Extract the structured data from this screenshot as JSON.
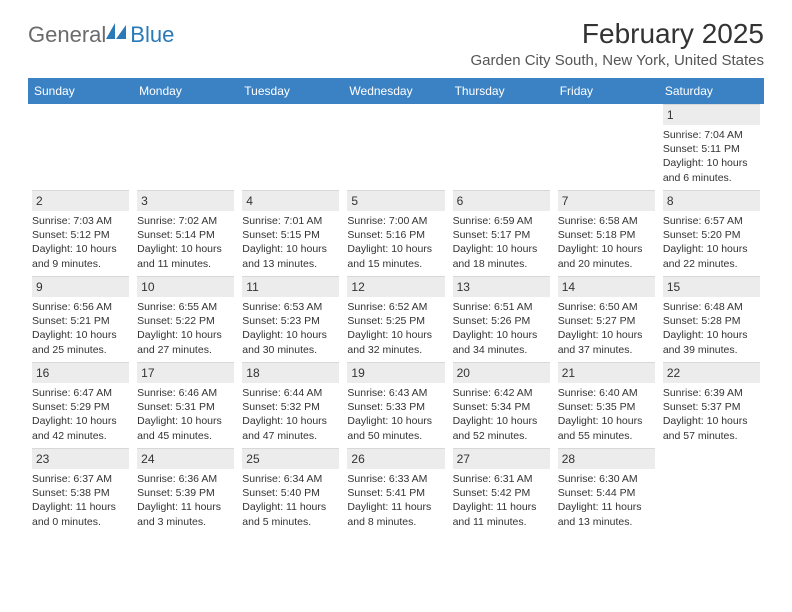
{
  "brand": {
    "name_part1": "General",
    "name_part2": "Blue",
    "logo_color": "#2a7ab8",
    "text_color": "#6b6b6b"
  },
  "title": "February 2025",
  "location": "Garden City South, New York, United States",
  "header_bg": "#3b82c4",
  "header_fg": "#ffffff",
  "daynum_bg": "#ececec",
  "text_color": "#333333",
  "day_names": [
    "Sunday",
    "Monday",
    "Tuesday",
    "Wednesday",
    "Thursday",
    "Friday",
    "Saturday"
  ],
  "weeks": [
    [
      {
        "n": "",
        "sunrise": "",
        "sunset": "",
        "daylight": ""
      },
      {
        "n": "",
        "sunrise": "",
        "sunset": "",
        "daylight": ""
      },
      {
        "n": "",
        "sunrise": "",
        "sunset": "",
        "daylight": ""
      },
      {
        "n": "",
        "sunrise": "",
        "sunset": "",
        "daylight": ""
      },
      {
        "n": "",
        "sunrise": "",
        "sunset": "",
        "daylight": ""
      },
      {
        "n": "",
        "sunrise": "",
        "sunset": "",
        "daylight": ""
      },
      {
        "n": "1",
        "sunrise": "Sunrise: 7:04 AM",
        "sunset": "Sunset: 5:11 PM",
        "daylight": "Daylight: 10 hours and 6 minutes."
      }
    ],
    [
      {
        "n": "2",
        "sunrise": "Sunrise: 7:03 AM",
        "sunset": "Sunset: 5:12 PM",
        "daylight": "Daylight: 10 hours and 9 minutes."
      },
      {
        "n": "3",
        "sunrise": "Sunrise: 7:02 AM",
        "sunset": "Sunset: 5:14 PM",
        "daylight": "Daylight: 10 hours and 11 minutes."
      },
      {
        "n": "4",
        "sunrise": "Sunrise: 7:01 AM",
        "sunset": "Sunset: 5:15 PM",
        "daylight": "Daylight: 10 hours and 13 minutes."
      },
      {
        "n": "5",
        "sunrise": "Sunrise: 7:00 AM",
        "sunset": "Sunset: 5:16 PM",
        "daylight": "Daylight: 10 hours and 15 minutes."
      },
      {
        "n": "6",
        "sunrise": "Sunrise: 6:59 AM",
        "sunset": "Sunset: 5:17 PM",
        "daylight": "Daylight: 10 hours and 18 minutes."
      },
      {
        "n": "7",
        "sunrise": "Sunrise: 6:58 AM",
        "sunset": "Sunset: 5:18 PM",
        "daylight": "Daylight: 10 hours and 20 minutes."
      },
      {
        "n": "8",
        "sunrise": "Sunrise: 6:57 AM",
        "sunset": "Sunset: 5:20 PM",
        "daylight": "Daylight: 10 hours and 22 minutes."
      }
    ],
    [
      {
        "n": "9",
        "sunrise": "Sunrise: 6:56 AM",
        "sunset": "Sunset: 5:21 PM",
        "daylight": "Daylight: 10 hours and 25 minutes."
      },
      {
        "n": "10",
        "sunrise": "Sunrise: 6:55 AM",
        "sunset": "Sunset: 5:22 PM",
        "daylight": "Daylight: 10 hours and 27 minutes."
      },
      {
        "n": "11",
        "sunrise": "Sunrise: 6:53 AM",
        "sunset": "Sunset: 5:23 PM",
        "daylight": "Daylight: 10 hours and 30 minutes."
      },
      {
        "n": "12",
        "sunrise": "Sunrise: 6:52 AM",
        "sunset": "Sunset: 5:25 PM",
        "daylight": "Daylight: 10 hours and 32 minutes."
      },
      {
        "n": "13",
        "sunrise": "Sunrise: 6:51 AM",
        "sunset": "Sunset: 5:26 PM",
        "daylight": "Daylight: 10 hours and 34 minutes."
      },
      {
        "n": "14",
        "sunrise": "Sunrise: 6:50 AM",
        "sunset": "Sunset: 5:27 PM",
        "daylight": "Daylight: 10 hours and 37 minutes."
      },
      {
        "n": "15",
        "sunrise": "Sunrise: 6:48 AM",
        "sunset": "Sunset: 5:28 PM",
        "daylight": "Daylight: 10 hours and 39 minutes."
      }
    ],
    [
      {
        "n": "16",
        "sunrise": "Sunrise: 6:47 AM",
        "sunset": "Sunset: 5:29 PM",
        "daylight": "Daylight: 10 hours and 42 minutes."
      },
      {
        "n": "17",
        "sunrise": "Sunrise: 6:46 AM",
        "sunset": "Sunset: 5:31 PM",
        "daylight": "Daylight: 10 hours and 45 minutes."
      },
      {
        "n": "18",
        "sunrise": "Sunrise: 6:44 AM",
        "sunset": "Sunset: 5:32 PM",
        "daylight": "Daylight: 10 hours and 47 minutes."
      },
      {
        "n": "19",
        "sunrise": "Sunrise: 6:43 AM",
        "sunset": "Sunset: 5:33 PM",
        "daylight": "Daylight: 10 hours and 50 minutes."
      },
      {
        "n": "20",
        "sunrise": "Sunrise: 6:42 AM",
        "sunset": "Sunset: 5:34 PM",
        "daylight": "Daylight: 10 hours and 52 minutes."
      },
      {
        "n": "21",
        "sunrise": "Sunrise: 6:40 AM",
        "sunset": "Sunset: 5:35 PM",
        "daylight": "Daylight: 10 hours and 55 minutes."
      },
      {
        "n": "22",
        "sunrise": "Sunrise: 6:39 AM",
        "sunset": "Sunset: 5:37 PM",
        "daylight": "Daylight: 10 hours and 57 minutes."
      }
    ],
    [
      {
        "n": "23",
        "sunrise": "Sunrise: 6:37 AM",
        "sunset": "Sunset: 5:38 PM",
        "daylight": "Daylight: 11 hours and 0 minutes."
      },
      {
        "n": "24",
        "sunrise": "Sunrise: 6:36 AM",
        "sunset": "Sunset: 5:39 PM",
        "daylight": "Daylight: 11 hours and 3 minutes."
      },
      {
        "n": "25",
        "sunrise": "Sunrise: 6:34 AM",
        "sunset": "Sunset: 5:40 PM",
        "daylight": "Daylight: 11 hours and 5 minutes."
      },
      {
        "n": "26",
        "sunrise": "Sunrise: 6:33 AM",
        "sunset": "Sunset: 5:41 PM",
        "daylight": "Daylight: 11 hours and 8 minutes."
      },
      {
        "n": "27",
        "sunrise": "Sunrise: 6:31 AM",
        "sunset": "Sunset: 5:42 PM",
        "daylight": "Daylight: 11 hours and 11 minutes."
      },
      {
        "n": "28",
        "sunrise": "Sunrise: 6:30 AM",
        "sunset": "Sunset: 5:44 PM",
        "daylight": "Daylight: 11 hours and 13 minutes."
      },
      {
        "n": "",
        "sunrise": "",
        "sunset": "",
        "daylight": ""
      }
    ]
  ]
}
